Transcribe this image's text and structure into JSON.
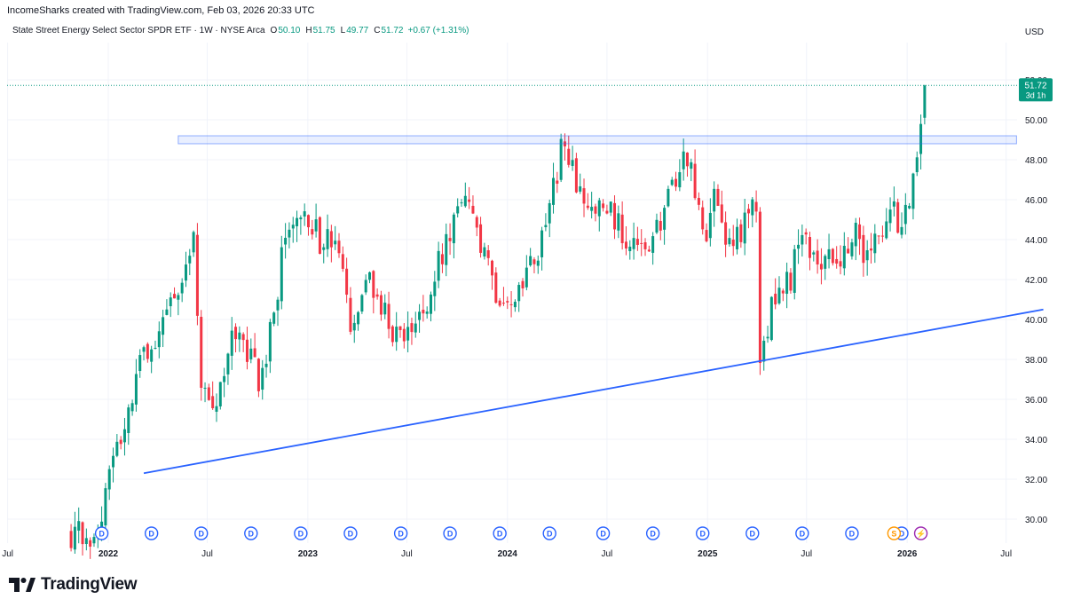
{
  "header": {
    "credit": "IncomeSharks created with TradingView.com, Feb 03, 2026 20:33 UTC",
    "symbol": "State Street Energy Select Sector SPDR ETF · 1W · NYSE Arca",
    "open_label": "O",
    "open": "50.10",
    "high_label": "H",
    "high": "51.75",
    "low_label": "L",
    "low": "49.77",
    "close_label": "C",
    "close": "51.72",
    "change": "+0.67 (+1.31%)",
    "currency": "USD"
  },
  "price_tag": {
    "price": "51.72",
    "countdown": "3d 1h"
  },
  "brand": {
    "name": "TradingView"
  },
  "colors": {
    "up": "#089981",
    "down": "#f23645",
    "trendline": "#2962ff",
    "zone": "#2962ff",
    "dividend": "#2962ff",
    "split": "#ff9800",
    "earnings": "#9c27b0"
  },
  "event_markers": {
    "dividend": "D",
    "split": "S",
    "earnings": "⚡"
  },
  "chart_data": {
    "type": "candlestick",
    "title": "State Street Energy Select Sector SPDR ETF · 1W · NYSE Arca",
    "ylabel": "USD",
    "ylim": [
      29.0,
      53.0
    ],
    "y_ticks": [
      "30.00",
      "32.00",
      "34.00",
      "36.00",
      "38.00",
      "40.00",
      "42.00",
      "44.00",
      "46.00",
      "48.00",
      "50.00",
      "52.00"
    ],
    "x_ticks": [
      "Jul",
      "2022",
      "Jul",
      "2023",
      "Jul",
      "2024",
      "Jul",
      "2025",
      "Jul",
      "2026",
      "Jul"
    ],
    "x_tick_dates": [
      "2021-07-01",
      "2022-01-01",
      "2022-07-01",
      "2023-01-01",
      "2023-07-01",
      "2024-01-01",
      "2024-07-01",
      "2025-01-01",
      "2025-07-01",
      "2026-01-01",
      "2026-07-01"
    ],
    "grid": true,
    "last_price": 51.72,
    "anchors": [
      [
        "2021-10-25",
        29.3
      ],
      [
        "2021-12-06",
        29.0
      ],
      [
        "2022-01-10",
        33.0
      ],
      [
        "2022-02-14",
        36.0
      ],
      [
        "2022-03-07",
        38.5
      ],
      [
        "2022-04-04",
        39.5
      ],
      [
        "2022-05-16",
        42.0
      ],
      [
        "2022-06-06",
        44.5
      ],
      [
        "2022-06-20",
        37.0
      ],
      [
        "2022-07-11",
        35.0
      ],
      [
        "2022-08-22",
        39.5
      ],
      [
        "2022-10-03",
        37.0
      ],
      [
        "2022-10-31",
        40.0
      ],
      [
        "2022-11-21",
        44.5
      ],
      [
        "2022-12-19",
        45.5
      ],
      [
        "2023-01-23",
        44.0
      ],
      [
        "2023-02-27",
        43.5
      ],
      [
        "2023-03-20",
        39.0
      ],
      [
        "2023-04-24",
        42.0
      ],
      [
        "2023-05-29",
        40.0
      ],
      [
        "2023-06-19",
        38.8
      ],
      [
        "2023-07-24",
        40.0
      ],
      [
        "2023-09-18",
        44.5
      ],
      [
        "2023-10-16",
        45.8
      ],
      [
        "2023-11-13",
        43.5
      ],
      [
        "2023-12-11",
        41.5
      ],
      [
        "2024-01-22",
        41.0
      ],
      [
        "2024-02-12",
        42.5
      ],
      [
        "2024-03-11",
        44.5
      ],
      [
        "2024-04-08",
        48.5
      ],
      [
        "2024-05-13",
        46.5
      ],
      [
        "2024-06-03",
        45.5
      ],
      [
        "2024-07-01",
        45.5
      ],
      [
        "2024-07-29",
        44.5
      ],
      [
        "2024-09-09",
        43.0
      ],
      [
        "2024-10-07",
        45.0
      ],
      [
        "2024-11-25",
        48.3
      ],
      [
        "2024-12-23",
        44.0
      ],
      [
        "2025-01-13",
        45.8
      ],
      [
        "2025-02-03",
        44.0
      ],
      [
        "2025-03-03",
        44.5
      ],
      [
        "2025-03-31",
        45.8
      ],
      [
        "2025-04-07",
        38.5
      ],
      [
        "2025-04-28",
        40.5
      ],
      [
        "2025-06-02",
        42.0
      ],
      [
        "2025-06-16",
        44.2
      ],
      [
        "2025-07-28",
        43.0
      ],
      [
        "2025-08-18",
        42.7
      ],
      [
        "2025-09-29",
        44.5
      ],
      [
        "2025-10-20",
        43.0
      ],
      [
        "2025-12-01",
        45.5
      ],
      [
        "2025-12-22",
        44.5
      ],
      [
        "2026-01-05",
        45.5
      ],
      [
        "2026-01-19",
        48.5
      ],
      [
        "2026-02-02",
        51.72
      ]
    ],
    "annotations": [
      {
        "type": "resistance_zone",
        "from": "2022-05-09",
        "to": "2026-07-20",
        "low": 48.8,
        "high": 49.2
      },
      {
        "type": "trendline",
        "from": [
          "2022-03-07",
          32.3
        ],
        "to": [
          "2026-09-07",
          40.5
        ]
      }
    ],
    "events": {
      "dividend": [
        "2021-12-20",
        "2022-03-21",
        "2022-06-20",
        "2022-09-19",
        "2022-12-19",
        "2023-03-20",
        "2023-06-20",
        "2023-09-18",
        "2023-12-18",
        "2024-03-18",
        "2024-06-24",
        "2024-09-23",
        "2024-12-23",
        "2025-03-24",
        "2025-06-23",
        "2025-09-22",
        "2025-12-22"
      ],
      "split": [
        "2025-12-08"
      ],
      "earnings": [
        "2026-01-26"
      ]
    }
  }
}
